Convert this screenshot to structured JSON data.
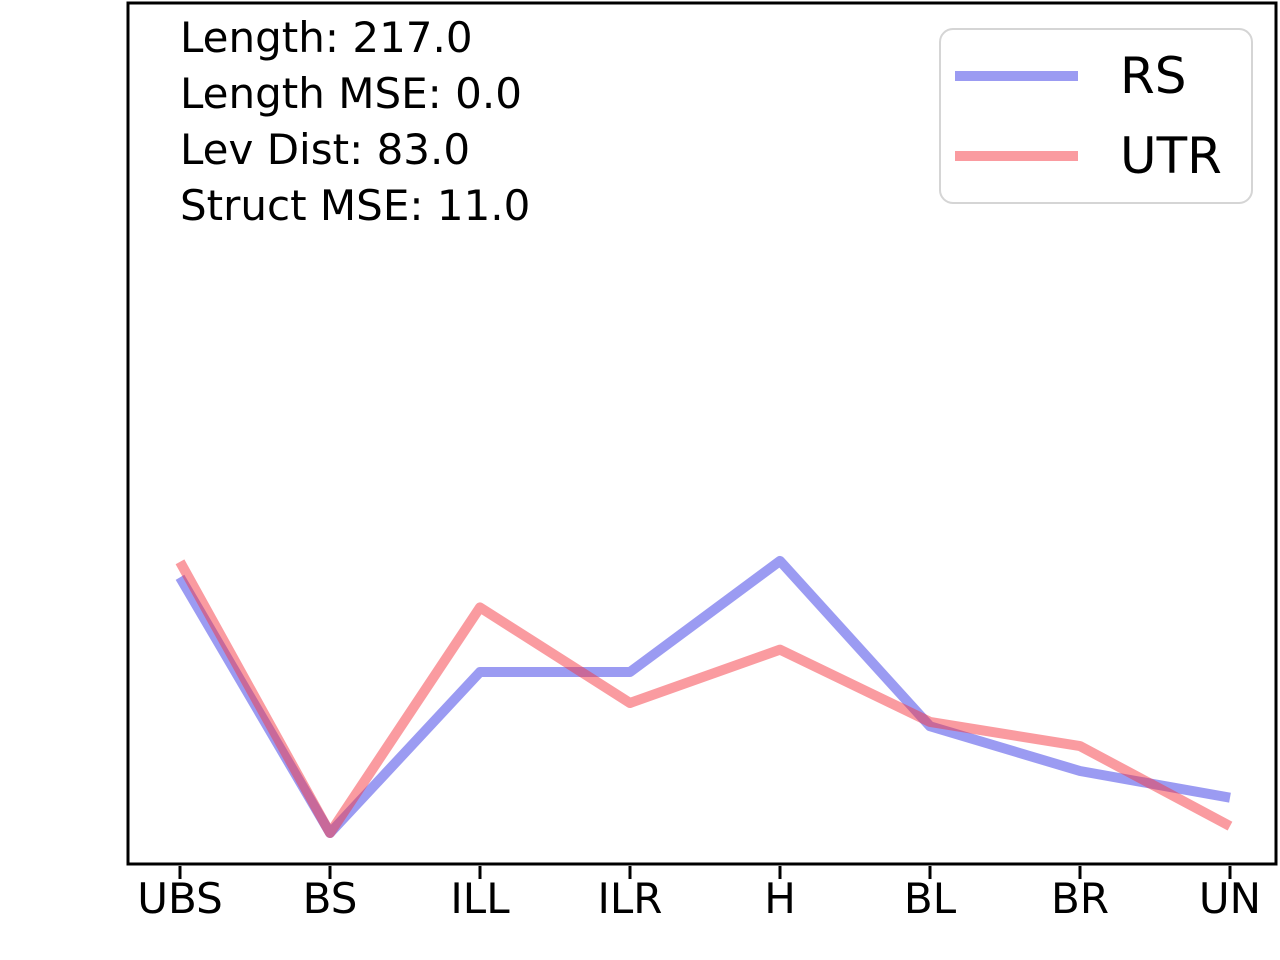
{
  "figure": {
    "background_color": "#ffffff",
    "axis_color": "#000000"
  },
  "annotations": {
    "lines": [
      "Length: 217.0",
      "Length MSE: 0.0",
      "Lev Dist: 83.0",
      "Struct MSE: 11.0"
    ]
  },
  "legend": {
    "position": "upper right",
    "items": [
      {
        "label": "RS",
        "color": "rgba(55,55,230,0.5)"
      },
      {
        "label": "UTR",
        "color": "rgba(245,55,65,0.5)"
      }
    ]
  },
  "chart_data": {
    "type": "line",
    "categories": [
      "UBS",
      "BS",
      "ILL",
      "ILR",
      "H",
      "BL",
      "BR",
      "UN"
    ],
    "series": [
      {
        "name": "RS",
        "color": "rgba(55,55,230,0.5)",
        "values": [
          0.333,
          0.036,
          0.223,
          0.223,
          0.352,
          0.16,
          0.108,
          0.077
        ]
      },
      {
        "name": "UTR",
        "color": "rgba(245,55,65,0.5)",
        "values": [
          0.351,
          0.036,
          0.298,
          0.187,
          0.249,
          0.165,
          0.137,
          0.044
        ]
      }
    ],
    "title": "",
    "xlabel": "",
    "ylabel": "",
    "ylim": [
      0,
      1
    ],
    "grid": false,
    "y_axis_ticks_visible": false,
    "legend_position": "upper right"
  }
}
